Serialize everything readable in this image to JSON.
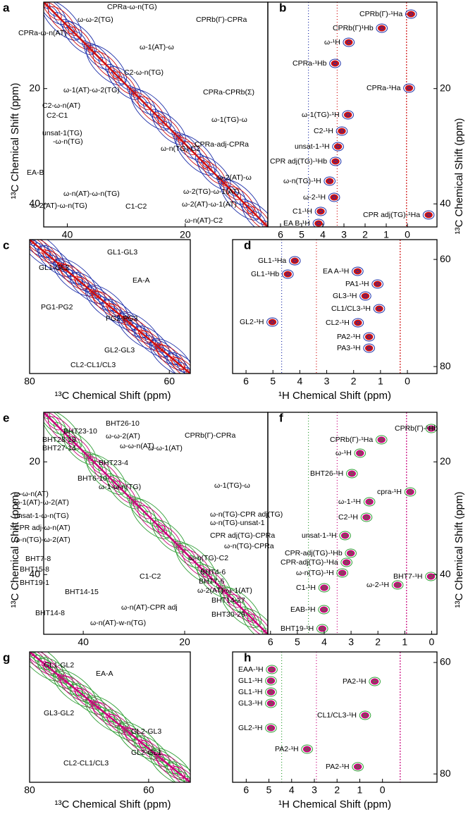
{
  "chart_data": [
    {
      "type": "contour",
      "panel": "a",
      "xlim": [
        44,
        6
      ],
      "xticks": [
        40,
        20
      ],
      "ylim": [
        5,
        44
      ],
      "yticks": [
        20,
        40
      ],
      "ylabel": "¹³C Chemical Shift (ppm)",
      "annotations": [
        "CPRa-ω-n(TG)",
        "ω-ω-2(TG)",
        "CPRa-ω-n(AT)",
        "CPRb(Γ)-CPRa",
        "ω-1(AT)-ω",
        "C2-ω-n(TG)",
        "ω-1(AT)-ω-2(TG)",
        "C2-ω-n(AT)",
        "C2-C1",
        "CPRa-CPRb(Σ)",
        "ω-1(TG)-ω",
        "unsat-1(TG)",
        "-ω-n(TG)",
        "ω-n(TG)-C2",
        "CPRa-adj-CPRa",
        "ω-2(AT)-ω",
        "EA-B",
        "ω-2(TG)-ω-1(AT)",
        "ω-n(AT)-ω-n(TG)",
        "ω-2(AT)-ω-1(AT)",
        "ω-2(AT)-ω-n(TG)",
        "C1-C2",
        "ω-n(AT)-C2"
      ]
    },
    {
      "type": "contour-1h",
      "panel": "b",
      "xlim": [
        6.6,
        -1.4
      ],
      "xticks": [
        6,
        5,
        4,
        3,
        2,
        1,
        0
      ],
      "ylim": [
        5,
        44
      ],
      "yticks": [
        20,
        40
      ],
      "ylabel": "¹³C Chemical Shift (ppm)",
      "annotations": [
        "CPRb(Γ)-¹Ha",
        "CPRb(Γ)¹Hb",
        "ω-¹H",
        "CPRa-¹Hb",
        "CPRa-¹Ha",
        "ω-1(TG)-¹H",
        "C2-¹H",
        "unsat-1-¹H",
        "CPR adj(TG)-¹Hb",
        "ω-n(TG)-¹H",
        "ω-2-¹H",
        "CPR adj(TG)-¹Ha",
        "C1-¹H",
        "EA B-¹H"
      ]
    },
    {
      "type": "contour",
      "panel": "c",
      "xlim": [
        80,
        57
      ],
      "xticks": [
        80,
        60
      ],
      "ylim": [
        56.3,
        81.3
      ],
      "yticks": [],
      "xlabel": "¹³C Chemical Shift (ppm)",
      "annotations": [
        "GL1-GL3",
        "GL1-GL2",
        "EA-A",
        "PG1-PG2",
        "PG2-PG3",
        "GL2-GL3",
        "CL2-CL1/CL3"
      ]
    },
    {
      "type": "contour-1h",
      "panel": "d",
      "xlim": [
        6.5,
        -1.1
      ],
      "xticks": [
        6,
        5,
        4,
        3,
        2,
        1,
        0
      ],
      "ylim": [
        56.3,
        81.3
      ],
      "yticks": [
        60,
        80
      ],
      "xlabel": "¹H Chemical Shift (ppm)",
      "annotations": [
        "GL1-¹Ha",
        "GL1-¹Hb",
        "EA A-¹H",
        "PA1-¹H",
        "GL3-¹H",
        "CL1/CL3-¹H",
        "GL2-¹H",
        "CL2-¹H",
        "PA2-¹H",
        "PA3-¹H"
      ]
    },
    {
      "type": "contour",
      "panel": "e",
      "xlim": [
        47.8,
        3.6
      ],
      "xticks": [
        40,
        20
      ],
      "ylim": [
        11.2,
        50.6
      ],
      "yticks": [
        20,
        40
      ],
      "ylabel": "¹³C Chemical Shift (ppm)",
      "annotations": [
        "BHT26-10",
        "BHT23-10",
        "ω-ω-2(AT)",
        "BHT28-18",
        "ω-ω-n(AT)",
        "BHT27-14",
        "CPRb(Γ)-CPRa",
        "ω-ω-1(AT)",
        "BHT23-4",
        "BHT6-10",
        "ω-1-ω-n(TG)",
        "ω-1(TG)-ω",
        "ω-ω-n(AT)",
        "ω-1(AT)-ω-2(AT)",
        "unsat-1-ω-n(TG)",
        "ω-n(TG)-CPR adj(TG)",
        "ω-n(TG)-unsat-1",
        "CPR adj-ω-n(AT)",
        "CPR adj(TG)-CPRa",
        "ω-n(TG)-ω-2(AT)",
        "ω-n(TG)-CPRa",
        "ω-n(TG)-C2",
        "BHT7-8",
        "BHT15-8",
        "C1-C2",
        "BHT4-6",
        "BHT19-1",
        "BHT7-6",
        "BHT14-15",
        "ω-2(AT)-ω-1(AT)",
        "BHT14-27",
        "BHT14-8",
        "ω-n(AT)-CPR adj",
        "BHT30-29",
        "ω-n(AT)-w-n(TG)"
      ]
    },
    {
      "type": "contour-1h",
      "panel": "f",
      "xlim": [
        6.1,
        -0.2
      ],
      "xticks": [
        6,
        5,
        4,
        3,
        2,
        1,
        0
      ],
      "ylim": [
        11.2,
        50.6
      ],
      "yticks": [
        20,
        40
      ],
      "ylabel": "¹³C Chemical Shift (ppm)",
      "annotations": [
        "CPRb(Γ)-¹Hb",
        "CPRb(Γ)-¹Ha",
        "ω-¹H",
        "BHT26-¹H",
        "cpra-¹H",
        "ω-1-¹H",
        "C2-¹H",
        "unsat-1-¹H",
        "CPR-adj(TG)-¹Hb",
        "CPR-adj(TG)-¹Ha",
        "ω-n(TG)-¹H",
        "BHT7-¹H",
        "ω-2-¹H",
        "C1-¹H",
        "EAB-¹H",
        "BHT19-¹H"
      ]
    },
    {
      "type": "contour",
      "panel": "g",
      "xlim": [
        80,
        53
      ],
      "xticks": [
        80,
        60
      ],
      "ylim": [
        58.1,
        81.5
      ],
      "yticks": [],
      "xlabel": "¹³C Chemical Shift (ppm)",
      "annotations": [
        "GL1-GL2",
        "EA-A",
        "GL3-GL2",
        "GL2-GL3",
        "GL2-GL1",
        "CL2-CL1/CL3"
      ]
    },
    {
      "type": "contour-1h",
      "panel": "h",
      "xlim": [
        6.6,
        -2.4
      ],
      "xticks": [
        6,
        5,
        4,
        3,
        2,
        1,
        0
      ],
      "ylim": [
        58.1,
        81.5
      ],
      "yticks": [
        60,
        80
      ],
      "xlabel": "¹H Chemical Shift (ppm)",
      "annotations": [
        "EAA-¹H",
        "GL1-¹H",
        "PA2-¹H",
        "GL1-¹H",
        "GL3-¹H",
        "CL1/CL3-¹H",
        "GL2-¹H",
        "PA2-¹H",
        "PA2-¹H"
      ]
    }
  ]
}
